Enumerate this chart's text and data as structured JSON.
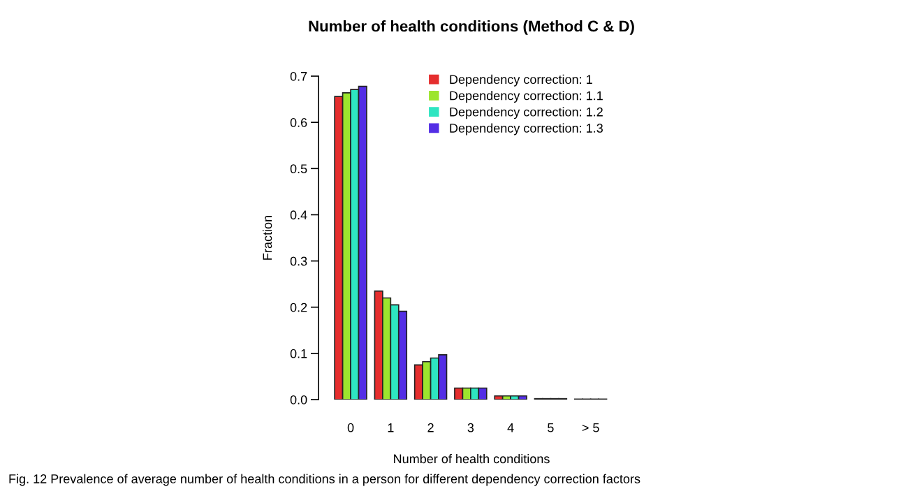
{
  "chart_data": {
    "type": "bar",
    "title": "Number of health conditions (Method C & D)",
    "xlabel": "Number of health conditions",
    "ylabel": "Fraction",
    "categories": [
      "0",
      "1",
      "2",
      "3",
      "4",
      "5",
      "> 5"
    ],
    "series": [
      {
        "name": "Dependency correction: 1",
        "color": "#e52e2e",
        "values": [
          0.656,
          0.235,
          0.075,
          0.025,
          0.008,
          0.002,
          0.001
        ]
      },
      {
        "name": "Dependency correction: 1.1",
        "color": "#9ce52e",
        "values": [
          0.664,
          0.22,
          0.082,
          0.025,
          0.008,
          0.002,
          0.001
        ]
      },
      {
        "name": "Dependency correction: 1.2",
        "color": "#2ee5c1",
        "values": [
          0.671,
          0.205,
          0.09,
          0.025,
          0.008,
          0.002,
          0.001
        ]
      },
      {
        "name": "Dependency correction: 1.3",
        "color": "#532ee5",
        "values": [
          0.678,
          0.191,
          0.097,
          0.025,
          0.008,
          0.002,
          0.001
        ]
      }
    ],
    "ylim": [
      0,
      0.7
    ],
    "yticks": [
      {
        "value": 0,
        "label": "0.0"
      },
      0.1,
      0.2,
      0.3,
      0.4,
      0.5,
      0.6,
      0.7
    ],
    "legend": "top right",
    "grid": false,
    "annotations": [
      "Fig. 12 Prevalence of average number of health conditions in a person for different dependency correction factors"
    ]
  }
}
